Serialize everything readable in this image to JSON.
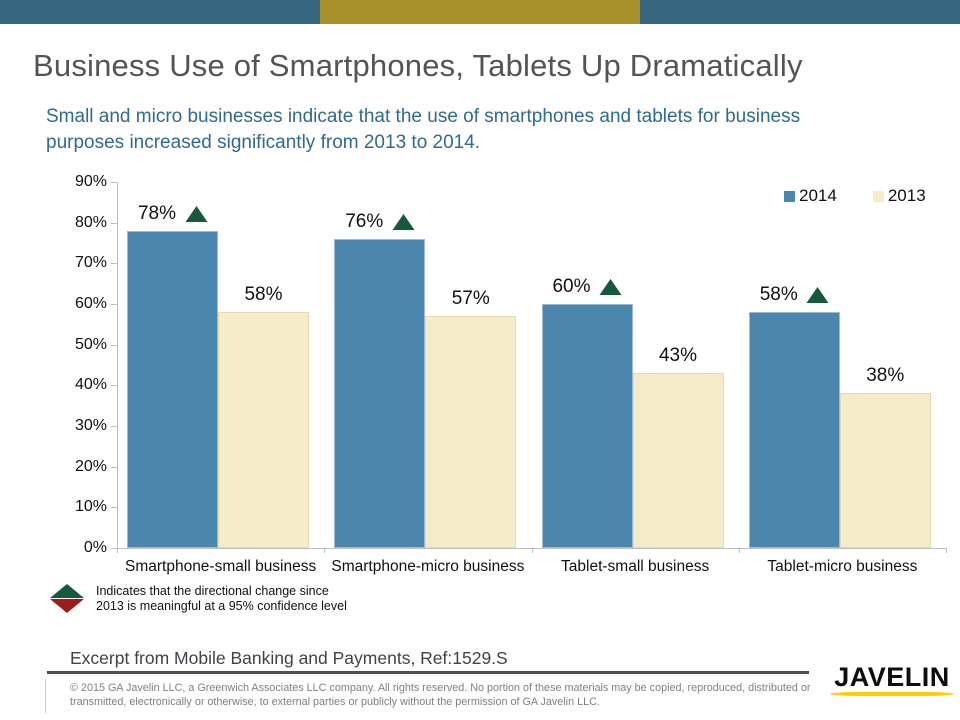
{
  "slide": {
    "title": "Business Use of Smartphones, Tablets Up Dramatically",
    "subtitle": "Small and micro businesses indicate that the use of smartphones and tablets for business purposes increased significantly from 2013 to 2014.",
    "accent_teal": "#36657f",
    "accent_gold": "#a8912a"
  },
  "chart_data": {
    "type": "bar",
    "title": "",
    "categories": [
      "Smartphone-small business",
      "Smartphone-micro business",
      "Tablet-small business",
      "Tablet-micro business"
    ],
    "series": [
      {
        "name": "2014",
        "color": "#4a86ad",
        "values": [
          78,
          76,
          60,
          58
        ],
        "significant_increase": [
          true,
          true,
          true,
          true
        ]
      },
      {
        "name": "2013",
        "color": "#f6ecca",
        "values": [
          58,
          57,
          43,
          38
        ]
      }
    ],
    "value_label_suffix": "%",
    "xlabel": "",
    "ylabel": "",
    "ylim": [
      0,
      90
    ],
    "ytick_labels": [
      "0%",
      "10%",
      "20%",
      "30%",
      "40%",
      "50%",
      "60%",
      "70%",
      "80%",
      "90%"
    ],
    "grid": false,
    "legend_position": "top-right",
    "significance_up_color": "#17593c",
    "significance_down_color": "#9e1c1c"
  },
  "marker_note": {
    "line1": "Indicates that the directional change since",
    "line2": "2013 is meaningful at a 95% confidence level"
  },
  "footer": {
    "excerpt": "Excerpt from Mobile Banking and Payments, Ref:1529.S",
    "copyright": "© 2015 GA Javelin LLC, a Greenwich Associates LLC company.  All rights reserved. No portion of these materials may be copied, reproduced, distributed or transmitted, electronically or otherwise, to external parties or publicly without the permission of GA Javelin LLC.",
    "logo_text": "JAVELIN",
    "logo_underline_color": "#ffce00"
  }
}
